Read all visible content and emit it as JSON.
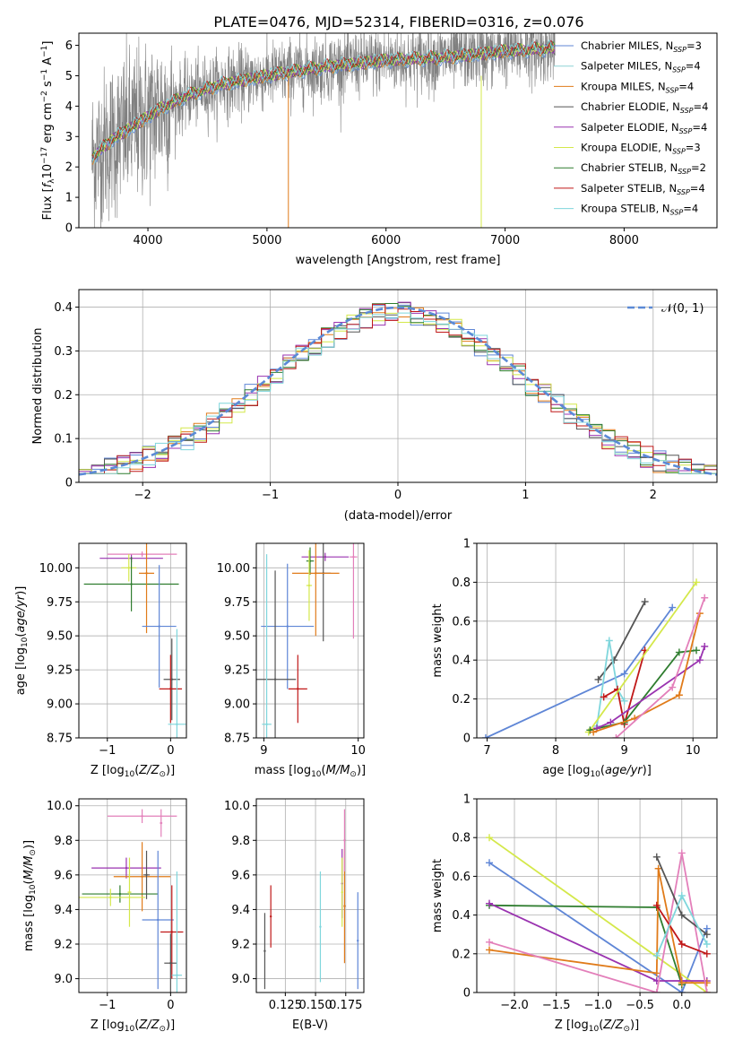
{
  "figure": {
    "title": "PLATE=0476, MJD=52314, FIBERID=0316, z=0.076"
  },
  "colors": {
    "spectrum": "#808080",
    "grid": "#b0b0b0",
    "gaussian": "#5b8ad6",
    "Chabrier MILES": "#5f86d6",
    "Salpeter MILES": "#8dd3d6",
    "Kroupa MILES": "#e07b1a",
    "Chabrier ELODIE": "#555555",
    "Salpeter ELODIE": "#9a33b0",
    "Kroupa ELODIE": "#d4e84a",
    "Chabrier STELIB": "#2f7d2f",
    "Salpeter STELIB": "#c01818",
    "Kroupa STELIB": "#7fd6dc",
    "extra": "#e37fba"
  },
  "chart_data": [
    {
      "type": "line",
      "id": "spectrum",
      "title": "PLATE=0476, MJD=52314, FIBERID=0316, z=0.076",
      "xlabel": "wavelength [Angstrom, rest frame]",
      "ylabel": "Flux [f_λ 10^-17 erg cm^-2 s^-1 A^-1]",
      "xlim": [
        3420,
        8780
      ],
      "ylim": [
        0,
        6.4
      ],
      "xticks": [
        4000,
        5000,
        6000,
        7000,
        8000
      ],
      "yticks": [
        0,
        1,
        2,
        3,
        4,
        5,
        6
      ],
      "grid": false,
      "legend_position": "upper-right",
      "x_range_data": [
        3530,
        7420
      ],
      "trend_x": [
        3530,
        3700,
        3900,
        4100,
        4300,
        4600,
        5000,
        5500,
        6000,
        6500,
        7000,
        7420
      ],
      "trend_y": [
        2.3,
        2.9,
        3.4,
        3.9,
        4.3,
        4.7,
        5.0,
        5.3,
        5.5,
        5.6,
        5.8,
        5.9
      ],
      "legend": [
        {
          "label": "Chabrier MILES, N",
          "sub": "SSP",
          "suffix": "=3"
        },
        {
          "label": "Salpeter MILES, N",
          "sub": "SSP",
          "suffix": "=4"
        },
        {
          "label": "Kroupa MILES, N",
          "sub": "SSP",
          "suffix": "=4"
        },
        {
          "label": "Chabrier ELODIE, N",
          "sub": "SSP",
          "suffix": "=4"
        },
        {
          "label": "Salpeter ELODIE, N",
          "sub": "SSP",
          "suffix": "=4"
        },
        {
          "label": "Kroupa ELODIE, N",
          "sub": "SSP",
          "suffix": "=3"
        },
        {
          "label": "Chabrier STELIB, N",
          "sub": "SSP",
          "suffix": "=2"
        },
        {
          "label": "Salpeter STELIB, N",
          "sub": "SSP",
          "suffix": "=4"
        },
        {
          "label": "Kroupa STELIB, N",
          "sub": "SSP",
          "suffix": "=4"
        }
      ],
      "legend_colors": [
        "#5f86d6",
        "#8dd3d6",
        "#e07b1a",
        "#555555",
        "#9a33b0",
        "#d4e84a",
        "#2f7d2f",
        "#c01818",
        "#7fd6dc"
      ]
    },
    {
      "type": "histogram",
      "id": "residuals",
      "xlabel": "(data-model)/error",
      "ylabel": "Normed distribution",
      "xlim": [
        -2.5,
        2.5
      ],
      "ylim": [
        0,
        0.44
      ],
      "xticks": [
        -2,
        -1,
        0,
        1,
        2
      ],
      "yticks": [
        0.0,
        0.1,
        0.2,
        0.3,
        0.4
      ],
      "grid": true,
      "legend": "𝒩(0, 1)",
      "legend_position": "upper-right",
      "bin_width": 0.1,
      "series_colors": [
        "#5f86d6",
        "#e07b1a",
        "#555555",
        "#9a33b0",
        "#d4e84a",
        "#2f7d2f",
        "#c01818",
        "#7fd6dc"
      ]
    },
    {
      "type": "errorbar",
      "id": "age_vs_Z",
      "xlabel": "Z [log10(Z/Z⊙)]",
      "ylabel": "age [log10(age/yr)]",
      "xlim": [
        -1.45,
        0.25
      ],
      "ylim": [
        8.75,
        10.18
      ],
      "xticks": [
        -1,
        0
      ],
      "yticks": [
        8.75,
        9.0,
        9.25,
        9.5,
        9.75,
        10.0
      ],
      "ytick_labels": [
        "8.75",
        "9.00",
        "9.25",
        "9.50",
        "9.75",
        "10.00"
      ],
      "grid": true,
      "points": [
        {
          "x": -0.62,
          "xerr": 0.5,
          "y": 10.07,
          "yerr": 0.03,
          "color": "#9a33b0"
        },
        {
          "x": -0.45,
          "xerr": 0.55,
          "y": 10.1,
          "yerr": 0.02,
          "color": "#e37fba"
        },
        {
          "x": -0.66,
          "xerr": 0.12,
          "y": 10.0,
          "yerr": 0.1,
          "color": "#d4e84a"
        },
        {
          "x": -0.62,
          "xerr": 0.75,
          "y": 9.88,
          "yerr": 0.2,
          "color": "#2f7d2f"
        },
        {
          "x": -0.38,
          "xerr": 0.12,
          "y": 9.96,
          "yerr": 0.44,
          "color": "#e07b1a"
        },
        {
          "x": -0.18,
          "xerr": 0.27,
          "y": 9.57,
          "yerr": 0.45,
          "color": "#5f86d6"
        },
        {
          "x": 0.02,
          "xerr": 0.13,
          "y": 9.18,
          "yerr": 0.3,
          "color": "#555555"
        },
        {
          "x": 0.0,
          "xerr": 0.18,
          "y": 9.11,
          "yerr": 0.25,
          "color": "#c01818"
        },
        {
          "x": 0.1,
          "xerr": 0.14,
          "y": 8.85,
          "yerr": 0.7,
          "color": "#7fd6dc"
        }
      ]
    },
    {
      "type": "errorbar",
      "id": "age_vs_mass",
      "xlabel": "mass [log10(M/M⊙)]",
      "ylabel": "",
      "xlim": [
        8.92,
        10.06
      ],
      "ylim": [
        8.75,
        10.18
      ],
      "xticks": [
        9,
        10
      ],
      "yticks": [
        8.75,
        9.0,
        9.25,
        9.5,
        9.75,
        10.0
      ],
      "ytick_labels": [
        "8.75",
        "9.00",
        "9.25",
        "9.50",
        "9.75",
        "10.00"
      ],
      "grid": true,
      "points": [
        {
          "x": 9.95,
          "xerr": 0.04,
          "y": 10.08,
          "yerr": 0.6,
          "color": "#e37fba"
        },
        {
          "x": 9.65,
          "xerr": 0.25,
          "y": 10.08,
          "yerr": 0.03,
          "color": "#9a33b0"
        },
        {
          "x": 9.49,
          "xerr": 0.04,
          "y": 10.05,
          "yerr": 0.1,
          "color": "#2f7d2f"
        },
        {
          "x": 9.63,
          "xerr": 0.08,
          "y": 9.96,
          "yerr": 0.5,
          "color": "#555555"
        },
        {
          "x": 9.55,
          "xerr": 0.25,
          "y": 9.96,
          "yerr": 0.46,
          "color": "#e07b1a"
        },
        {
          "x": 9.48,
          "xerr": 0.03,
          "y": 9.87,
          "yerr": 0.26,
          "color": "#d4e84a"
        },
        {
          "x": 9.25,
          "xerr": 0.28,
          "y": 9.57,
          "yerr": 0.46,
          "color": "#5f86d6"
        },
        {
          "x": 9.12,
          "xerr": 0.22,
          "y": 9.18,
          "yerr": 0.8,
          "color": "#555555"
        },
        {
          "x": 9.36,
          "xerr": 0.1,
          "y": 9.11,
          "yerr": 0.25,
          "color": "#c01818"
        },
        {
          "x": 9.03,
          "xerr": 0.05,
          "y": 8.85,
          "yerr": 1.25,
          "color": "#7fd6dc"
        }
      ]
    },
    {
      "type": "line",
      "id": "weight_vs_age",
      "xlabel": "age [log10(age/yr)]",
      "ylabel": "mass weight",
      "xlim": [
        6.85,
        10.35
      ],
      "ylim": [
        0,
        1.0
      ],
      "xticks": [
        7,
        8,
        9,
        10
      ],
      "yticks": [
        0.0,
        0.2,
        0.4,
        0.6,
        0.8,
        1.0
      ],
      "grid": true,
      "series": [
        {
          "color": "#5f86d6",
          "x": [
            6.98,
            9.0,
            9.7
          ],
          "y": [
            0.0,
            0.33,
            0.67
          ]
        },
        {
          "color": "#555555",
          "x": [
            8.62,
            8.85,
            9.3
          ],
          "y": [
            0.3,
            0.4,
            0.7
          ]
        },
        {
          "color": "#7fd6dc",
          "x": [
            8.6,
            8.78,
            8.9,
            9.0
          ],
          "y": [
            0.06,
            0.5,
            0.25,
            0.19
          ]
        },
        {
          "color": "#c01818",
          "x": [
            8.7,
            8.9,
            9.0,
            9.3
          ],
          "y": [
            0.21,
            0.25,
            0.07,
            0.45
          ]
        },
        {
          "color": "#d4e84a",
          "x": [
            8.48,
            10.05
          ],
          "y": [
            0.03,
            0.8
          ]
        },
        {
          "color": "#2f7d2f",
          "x": [
            8.5,
            9.0,
            9.8,
            10.05
          ],
          "y": [
            0.04,
            0.08,
            0.44,
            0.45
          ]
        },
        {
          "color": "#9a33b0",
          "x": [
            8.6,
            8.8,
            10.1,
            10.17
          ],
          "y": [
            0.05,
            0.08,
            0.4,
            0.47
          ]
        },
        {
          "color": "#e07b1a",
          "x": [
            8.55,
            9.15,
            9.8,
            10.1
          ],
          "y": [
            0.03,
            0.1,
            0.22,
            0.64
          ]
        },
        {
          "color": "#e37fba",
          "x": [
            8.88,
            9.7,
            10.17
          ],
          "y": [
            0.0,
            0.26,
            0.72
          ]
        }
      ]
    },
    {
      "type": "errorbar",
      "id": "mass_vs_Z",
      "xlabel": "Z [log10(Z/Z⊙)]",
      "ylabel": "mass [log10(M/M⊙)]",
      "xlim": [
        -1.45,
        0.25
      ],
      "ylim": [
        8.92,
        10.04
      ],
      "xticks": [
        -1,
        0
      ],
      "yticks": [
        9.0,
        9.2,
        9.4,
        9.6,
        9.8,
        10.0
      ],
      "ytick_labels": [
        "9.0",
        "9.2",
        "9.4",
        "9.6",
        "9.8",
        "10.0"
      ],
      "grid": true,
      "points": [
        {
          "x": -0.45,
          "xerr": 0.55,
          "y": 9.94,
          "yerr": 0.04,
          "color": "#e37fba"
        },
        {
          "x": -0.7,
          "xerr": 0.55,
          "y": 9.64,
          "yerr": 0.06,
          "color": "#9a33b0"
        },
        {
          "x": -0.45,
          "xerr": 0.45,
          "y": 9.59,
          "yerr": 0.2,
          "color": "#e07b1a"
        },
        {
          "x": -0.8,
          "xerr": 0.6,
          "y": 9.49,
          "yerr": 0.05,
          "color": "#2f7d2f"
        },
        {
          "x": -0.95,
          "xerr": 0.55,
          "y": 9.47,
          "yerr": 0.05,
          "color": "#d4e84a"
        },
        {
          "x": -0.38,
          "xerr": 0.05,
          "y": 9.6,
          "yerr": 0.14,
          "color": "#555555"
        },
        {
          "x": -0.65,
          "xerr": 0.03,
          "y": 9.5,
          "yerr": 0.2,
          "color": "#d4e84a"
        },
        {
          "x": -0.2,
          "xerr": 0.25,
          "y": 9.34,
          "yerr": 0.4,
          "color": "#5f86d6"
        },
        {
          "x": 0.02,
          "xerr": 0.18,
          "y": 9.27,
          "yerr": 0.27,
          "color": "#c01818"
        },
        {
          "x": 0.0,
          "xerr": 0.1,
          "y": 9.09,
          "yerr": 0.17,
          "color": "#555555"
        },
        {
          "x": 0.1,
          "xerr": 0.08,
          "y": 9.02,
          "yerr": 0.6,
          "color": "#7fd6dc"
        },
        {
          "x": -0.15,
          "xerr": 0.02,
          "y": 9.9,
          "yerr": 0.08,
          "color": "#e37fba"
        }
      ]
    },
    {
      "type": "errorbar",
      "id": "mass_vs_ebv",
      "xlabel": "E(B-V)",
      "ylabel": "",
      "xlim": [
        0.101,
        0.19
      ],
      "ylim": [
        8.92,
        10.04
      ],
      "xticks": [
        0.125,
        0.15,
        0.175
      ],
      "xtick_labels": [
        "0.125",
        "0.150",
        "0.175"
      ],
      "yticks": [
        9.0,
        9.2,
        9.4,
        9.6,
        9.8,
        10.0
      ],
      "ytick_labels": [
        "9.0",
        "9.2",
        "9.4",
        "9.6",
        "9.8",
        "10.0"
      ],
      "grid": true,
      "points": [
        {
          "x": 0.108,
          "y": 9.16,
          "yerr": 0.22,
          "color": "#555555"
        },
        {
          "x": 0.113,
          "y": 9.36,
          "yerr": 0.18,
          "color": "#c01818"
        },
        {
          "x": 0.154,
          "y": 9.3,
          "yerr": 0.32,
          "color": "#7fd6dc"
        },
        {
          "x": 0.172,
          "y": 9.55,
          "yerr": 0.2,
          "color": "#9a33b0"
        },
        {
          "x": 0.172,
          "y": 9.5,
          "yerr": 0.2,
          "color": "#d4e84a"
        },
        {
          "x": 0.174,
          "y": 9.42,
          "yerr": 0.33,
          "color": "#e07b1a"
        },
        {
          "x": 0.174,
          "y": 9.8,
          "yerr": 0.18,
          "color": "#e37fba"
        },
        {
          "x": 0.185,
          "y": 9.22,
          "yerr": 0.28,
          "color": "#5f86d6"
        }
      ]
    },
    {
      "type": "line",
      "id": "weight_vs_Z",
      "xlabel": "Z [log10(Z/Z⊙)]",
      "ylabel": "mass weight",
      "xlim": [
        -2.45,
        0.42
      ],
      "ylim": [
        0,
        1.0
      ],
      "xticks": [
        -2.0,
        -1.5,
        -1.0,
        -0.5,
        0.0
      ],
      "xtick_labels": [
        "−2.0",
        "−1.5",
        "−1.0",
        "−0.5",
        "0.0"
      ],
      "yticks": [
        0.0,
        0.2,
        0.4,
        0.6,
        0.8,
        1.0
      ],
      "grid": true,
      "series": [
        {
          "color": "#5f86d6",
          "x": [
            -2.3,
            0.0,
            0.3
          ],
          "y": [
            0.67,
            0.0,
            0.33
          ]
        },
        {
          "color": "#d4e84a",
          "x": [
            -2.3,
            0.3
          ],
          "y": [
            0.8,
            0.0
          ]
        },
        {
          "color": "#2f7d2f",
          "x": [
            -2.3,
            -0.3,
            0.0
          ],
          "y": [
            0.45,
            0.44,
            0.04
          ]
        },
        {
          "color": "#9a33b0",
          "x": [
            -2.3,
            -0.3,
            0.0,
            0.3
          ],
          "y": [
            0.46,
            0.06,
            0.06,
            0.06
          ]
        },
        {
          "color": "#e07b1a",
          "x": [
            -2.3,
            -0.3,
            -0.28,
            0.0,
            0.3
          ],
          "y": [
            0.22,
            0.1,
            0.64,
            0.05,
            0.05
          ]
        },
        {
          "color": "#e37fba",
          "x": [
            -2.3,
            -0.3,
            0.0,
            0.3
          ],
          "y": [
            0.26,
            0.0,
            0.72,
            0.0
          ]
        },
        {
          "color": "#c01818",
          "x": [
            -0.3,
            0.0,
            0.3
          ],
          "y": [
            0.45,
            0.25,
            0.2
          ]
        },
        {
          "color": "#555555",
          "x": [
            -0.3,
            0.0,
            0.3
          ],
          "y": [
            0.7,
            0.4,
            0.3
          ]
        },
        {
          "color": "#7fd6dc",
          "x": [
            -0.3,
            0.0,
            0.3
          ],
          "y": [
            0.19,
            0.5,
            0.25
          ]
        }
      ]
    }
  ]
}
